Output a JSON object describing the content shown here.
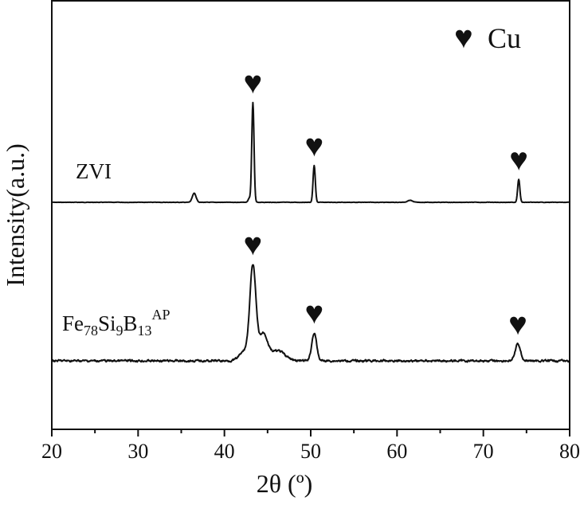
{
  "chart_data": {
    "type": "line",
    "xlabel": "2θ (º)",
    "ylabel": "Intensity(a.u.)",
    "xlim": [
      20,
      80
    ],
    "xticks": [
      "20",
      "30",
      "40",
      "50",
      "60",
      "70",
      "80"
    ],
    "legend": {
      "symbol": "♥",
      "label": "Cu",
      "placement": "top-right"
    },
    "grid": false,
    "y_ticks_shown": false,
    "series": [
      {
        "label_main": "ZVI",
        "label_parts": [],
        "peaks": [
          {
            "x": 36.5,
            "height": 0.09,
            "width": 0.22
          },
          {
            "x": 42.9,
            "height": 0.04,
            "width": 0.15
          },
          {
            "x": 43.3,
            "height": 1.0,
            "width": 0.13
          },
          {
            "x": 50.4,
            "height": 0.37,
            "width": 0.13
          },
          {
            "x": 61.5,
            "height": 0.02,
            "width": 0.3
          },
          {
            "x": 74.1,
            "height": 0.23,
            "width": 0.13
          }
        ],
        "markers": [
          43.3,
          50.4,
          74.1
        ]
      },
      {
        "label_main": "",
        "label_parts": [
          {
            "t": "Fe",
            "s": "n"
          },
          {
            "t": "78",
            "s": "sub"
          },
          {
            "t": "Si",
            "s": "n"
          },
          {
            "t": "9",
            "s": "sub"
          },
          {
            "t": "B",
            "s": "n"
          },
          {
            "t": "13",
            "s": "sub"
          },
          {
            "t": "AP",
            "s": "sup"
          }
        ],
        "peaks": [
          {
            "x": 43.3,
            "height": 0.92,
            "width": 0.35
          },
          {
            "x": 44.5,
            "height": 0.27,
            "width": 0.5
          },
          {
            "x": 42.4,
            "height": 0.1,
            "width": 0.6
          },
          {
            "x": 46.2,
            "height": 0.1,
            "width": 0.8
          },
          {
            "x": 50.4,
            "height": 0.28,
            "width": 0.28
          },
          {
            "x": 74.0,
            "height": 0.17,
            "width": 0.3
          }
        ],
        "markers": [
          43.3,
          50.4,
          74.0
        ]
      }
    ]
  }
}
